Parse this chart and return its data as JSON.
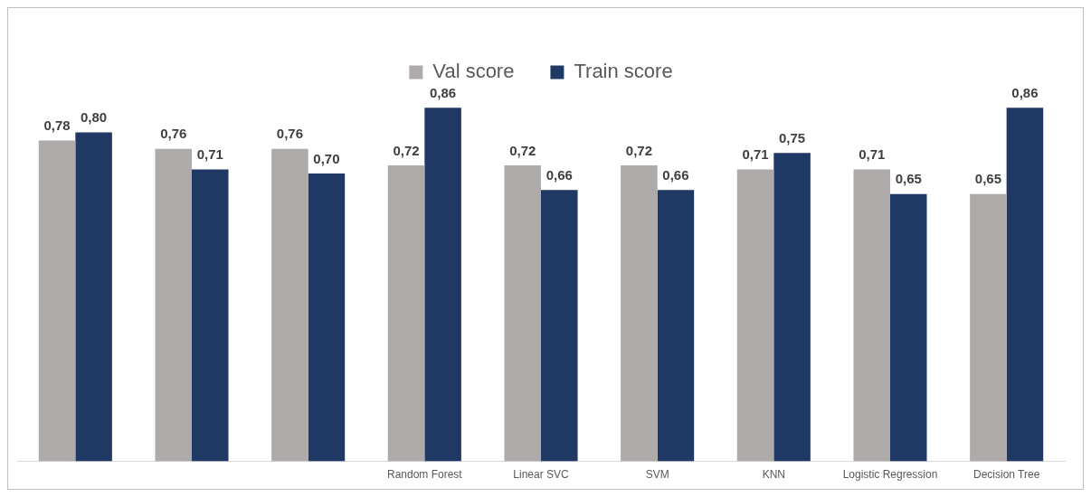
{
  "chart_data": {
    "type": "bar",
    "categories": [
      null,
      null,
      null,
      "Random Forest",
      "Linear SVC",
      "SVM",
      "KNN",
      "Logistic Regression",
      "Decision Tree"
    ],
    "series": [
      {
        "name": "Val score",
        "color": "#aeaaaa",
        "values": [
          0.78,
          0.76,
          0.76,
          0.72,
          0.72,
          0.72,
          0.71,
          0.71,
          0.65
        ],
        "value_labels": [
          "0,78",
          "0,76",
          "0,76",
          "0,72",
          "0,72",
          "0,72",
          "0,71",
          "0,71",
          "0,65"
        ]
      },
      {
        "name": "Train score",
        "color": "#1f3864",
        "values": [
          0.8,
          0.71,
          0.7,
          0.86,
          0.66,
          0.66,
          0.75,
          0.65,
          0.86
        ],
        "value_labels": [
          "0,80",
          "0,71",
          "0,70",
          "0,86",
          "0,66",
          "0,66",
          "0,75",
          "0,65",
          "0,86"
        ]
      }
    ],
    "legend": "top",
    "grid": false
  }
}
